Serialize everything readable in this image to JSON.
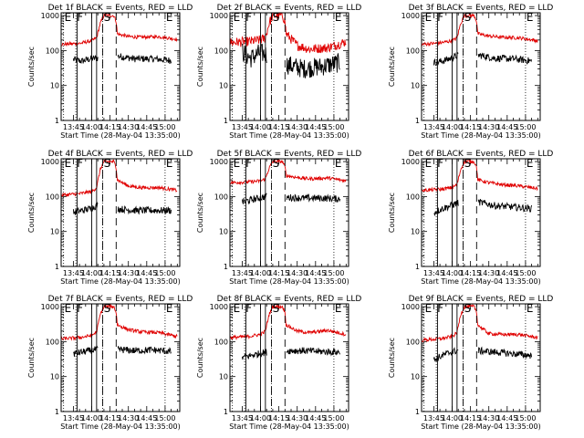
{
  "chart_data": [
    {
      "type": "line",
      "title": "Det 1f BLACK = Events, RED = LLD",
      "xlabel": "Start Time (28-May-04 13:35:00)",
      "ylabel": "Counts/sec",
      "xticks": [
        "13:45",
        "14:00",
        "14:15",
        "14:30",
        "14:45",
        "15:00"
      ],
      "yticks": [
        "1",
        "10",
        "100",
        "1000"
      ],
      "ylim": [
        1,
        1000
      ],
      "yscale": "log",
      "markers": [
        {
          "label": "E",
          "time": "13:37"
        },
        {
          "label": "F",
          "time": "13:47"
        },
        {
          "label": "S",
          "time": "14:09"
        },
        {
          "label": "E",
          "time": "15:00"
        }
      ],
      "solid_lines": [
        "13:48",
        "14:00",
        "14:04"
      ],
      "dashed_lines": [
        "14:09",
        "14:20"
      ],
      "series": [
        {
          "name": "Events",
          "color": "#000000",
          "gaps": [
            [
              "14:05",
              "14:21"
            ]
          ],
          "x": [
            "13:45",
            "13:52",
            "13:59",
            "14:04",
            "14:21",
            "14:35",
            "14:50",
            "15:05"
          ],
          "y": [
            55,
            50,
            58,
            60,
            70,
            58,
            58,
            52
          ]
        },
        {
          "name": "LLD",
          "color": "#e00000",
          "gaps": [],
          "x": [
            "13:35",
            "13:50",
            "14:00",
            "14:04",
            "14:07",
            "14:10",
            "14:18",
            "14:20",
            "14:21",
            "14:30",
            "14:40",
            "14:55",
            "15:10"
          ],
          "y": [
            150,
            160,
            190,
            230,
            600,
            1000,
            1000,
            700,
            300,
            250,
            240,
            250,
            210
          ]
        }
      ]
    },
    {
      "type": "line",
      "title": "Det 2f BLACK = Events, RED = LLD",
      "xlabel": "Start Time (28-May-04 13:35:00)",
      "ylabel": "Counts/sec",
      "xticks": [
        "13:45",
        "14:00",
        "14:15",
        "14:30",
        "14:45",
        "15:00"
      ],
      "yticks": [
        "1",
        "10",
        "100",
        "1000"
      ],
      "ylim": [
        1,
        1000
      ],
      "yscale": "log",
      "markers": [
        {
          "label": "E",
          "time": "13:37"
        },
        {
          "label": "F",
          "time": "13:47"
        },
        {
          "label": "S",
          "time": "14:09"
        },
        {
          "label": "E",
          "time": "15:00"
        }
      ],
      "solid_lines": [
        "13:48",
        "14:00",
        "14:04"
      ],
      "dashed_lines": [
        "14:09",
        "14:20"
      ],
      "series": [
        {
          "name": "Events",
          "color": "#000000",
          "gaps": [
            [
              "14:05",
              "14:21"
            ]
          ],
          "x": [
            "13:45",
            "13:52",
            "13:59",
            "14:04",
            "14:21",
            "14:35",
            "14:50",
            "15:05"
          ],
          "y": [
            90,
            60,
            85,
            80,
            40,
            30,
            35,
            45
          ]
        },
        {
          "name": "LLD",
          "color": "#e00000",
          "gaps": [],
          "x": [
            "13:35",
            "13:50",
            "14:00",
            "14:04",
            "14:07",
            "14:10",
            "14:18",
            "14:20",
            "14:21",
            "14:30",
            "14:40",
            "14:55",
            "15:10"
          ],
          "y": [
            170,
            180,
            200,
            230,
            600,
            1000,
            1000,
            700,
            300,
            140,
            110,
            120,
            180
          ]
        }
      ]
    },
    {
      "type": "line",
      "title": "Det 3f BLACK = Events, RED = LLD",
      "xlabel": "Start Time (28-May-04 13:35:00)",
      "ylabel": "Counts/sec",
      "xticks": [
        "13:45",
        "14:00",
        "14:15",
        "14:30",
        "14:45",
        "15:00"
      ],
      "yticks": [
        "1",
        "10",
        "100",
        "1000"
      ],
      "ylim": [
        1,
        1000
      ],
      "yscale": "log",
      "markers": [
        {
          "label": "E",
          "time": "13:37"
        },
        {
          "label": "F",
          "time": "13:47"
        },
        {
          "label": "S",
          "time": "14:09"
        },
        {
          "label": "E",
          "time": "15:00"
        }
      ],
      "solid_lines": [
        "13:48",
        "14:00",
        "14:04"
      ],
      "dashed_lines": [
        "14:09",
        "14:20"
      ],
      "series": [
        {
          "name": "Events",
          "color": "#000000",
          "gaps": [
            [
              "14:05",
              "14:21"
            ]
          ],
          "x": [
            "13:45",
            "13:52",
            "13:59",
            "14:04",
            "14:21",
            "14:35",
            "14:50",
            "15:05"
          ],
          "y": [
            45,
            50,
            60,
            70,
            75,
            60,
            58,
            50
          ]
        },
        {
          "name": "LLD",
          "color": "#e00000",
          "gaps": [],
          "x": [
            "13:35",
            "13:50",
            "14:00",
            "14:04",
            "14:07",
            "14:10",
            "14:18",
            "14:20",
            "14:21",
            "14:30",
            "14:40",
            "14:55",
            "15:10"
          ],
          "y": [
            150,
            165,
            190,
            230,
            600,
            1000,
            1000,
            700,
            300,
            260,
            240,
            230,
            190
          ]
        }
      ]
    },
    {
      "type": "line",
      "title": "Det 4f BLACK = Events, RED = LLD",
      "xlabel": "Start Time (28-May-04 13:35:00)",
      "ylabel": "Counts/sec",
      "xticks": [
        "13:45",
        "14:00",
        "14:15",
        "14:30",
        "14:45",
        "15:00"
      ],
      "yticks": [
        "1",
        "10",
        "100",
        "1000"
      ],
      "ylim": [
        1,
        1000
      ],
      "yscale": "log",
      "markers": [
        {
          "label": "E",
          "time": "13:37"
        },
        {
          "label": "F",
          "time": "13:47"
        },
        {
          "label": "S",
          "time": "14:09"
        },
        {
          "label": "E",
          "time": "15:00"
        }
      ],
      "solid_lines": [
        "13:48",
        "14:00",
        "14:04"
      ],
      "dashed_lines": [
        "14:09",
        "14:20"
      ],
      "series": [
        {
          "name": "Events",
          "color": "#000000",
          "gaps": [
            [
              "14:05",
              "14:21"
            ]
          ],
          "x": [
            "13:45",
            "13:52",
            "13:59",
            "14:04",
            "14:21",
            "14:35",
            "14:50",
            "15:05"
          ],
          "y": [
            35,
            40,
            45,
            55,
            45,
            40,
            40,
            40
          ]
        },
        {
          "name": "LLD",
          "color": "#e00000",
          "gaps": [],
          "x": [
            "13:35",
            "13:50",
            "14:00",
            "14:04",
            "14:07",
            "14:10",
            "14:18",
            "14:20",
            "14:21",
            "14:30",
            "14:40",
            "14:55",
            "15:10"
          ],
          "y": [
            110,
            120,
            140,
            180,
            600,
            1000,
            1000,
            700,
            300,
            200,
            180,
            180,
            150
          ]
        }
      ]
    },
    {
      "type": "line",
      "title": "Det 5f BLACK = Events, RED = LLD",
      "xlabel": "Start Time (28-May-04 13:35:00)",
      "ylabel": "Counts/sec",
      "xticks": [
        "13:45",
        "14:00",
        "14:15",
        "14:30",
        "14:45",
        "15:00"
      ],
      "yticks": [
        "1",
        "10",
        "100",
        "1000"
      ],
      "ylim": [
        1,
        1000
      ],
      "yscale": "log",
      "markers": [
        {
          "label": "E",
          "time": "13:37"
        },
        {
          "label": "F",
          "time": "13:47"
        },
        {
          "label": "S",
          "time": "14:09"
        },
        {
          "label": "E",
          "time": "15:00"
        }
      ],
      "solid_lines": [
        "13:48",
        "14:00",
        "14:04"
      ],
      "dashed_lines": [
        "14:09",
        "14:20"
      ],
      "series": [
        {
          "name": "Events",
          "color": "#000000",
          "gaps": [
            [
              "14:05",
              "14:21"
            ]
          ],
          "x": [
            "13:45",
            "13:52",
            "13:59",
            "14:04",
            "14:21",
            "14:35",
            "14:50",
            "15:05"
          ],
          "y": [
            70,
            80,
            90,
            100,
            95,
            90,
            90,
            85
          ]
        },
        {
          "name": "LLD",
          "color": "#e00000",
          "gaps": [],
          "x": [
            "13:35",
            "13:50",
            "14:00",
            "14:04",
            "14:07",
            "14:10",
            "14:18",
            "14:20",
            "14:21",
            "14:30",
            "14:40",
            "14:55",
            "15:10"
          ],
          "y": [
            250,
            260,
            280,
            320,
            650,
            1000,
            1000,
            700,
            400,
            350,
            320,
            340,
            280
          ]
        }
      ]
    },
    {
      "type": "line",
      "title": "Det 6f BLACK = Events, RED = LLD",
      "xlabel": "Start Time (28-May-04 13:35:00)",
      "ylabel": "Counts/sec",
      "xticks": [
        "13:45",
        "14:00",
        "14:15",
        "14:30",
        "14:45",
        "15:00"
      ],
      "yticks": [
        "1",
        "10",
        "100",
        "1000"
      ],
      "ylim": [
        1,
        1000
      ],
      "yscale": "log",
      "markers": [
        {
          "label": "E",
          "time": "13:37"
        },
        {
          "label": "F",
          "time": "13:47"
        },
        {
          "label": "S",
          "time": "14:09"
        },
        {
          "label": "E",
          "time": "15:00"
        }
      ],
      "solid_lines": [
        "13:48",
        "14:00",
        "14:04"
      ],
      "dashed_lines": [
        "14:09",
        "14:20"
      ],
      "series": [
        {
          "name": "Events",
          "color": "#000000",
          "gaps": [
            [
              "14:05",
              "14:21"
            ]
          ],
          "x": [
            "13:45",
            "13:52",
            "13:59",
            "14:04",
            "14:21",
            "14:35",
            "14:50",
            "15:05"
          ],
          "y": [
            35,
            45,
            55,
            65,
            70,
            55,
            50,
            45
          ]
        },
        {
          "name": "LLD",
          "color": "#e00000",
          "gaps": [],
          "x": [
            "13:35",
            "13:50",
            "14:00",
            "14:04",
            "14:07",
            "14:10",
            "14:18",
            "14:20",
            "14:21",
            "14:30",
            "14:40",
            "14:55",
            "15:10"
          ],
          "y": [
            150,
            160,
            180,
            220,
            600,
            1000,
            1000,
            700,
            300,
            250,
            220,
            200,
            170
          ]
        }
      ]
    },
    {
      "type": "line",
      "title": "Det 7f BLACK = Events, RED = LLD",
      "xlabel": "Start Time (28-May-04 13:35:00)",
      "ylabel": "Counts/sec",
      "xticks": [
        "13:45",
        "14:00",
        "14:15",
        "14:30",
        "14:45",
        "15:00"
      ],
      "yticks": [
        "1",
        "10",
        "100",
        "1000"
      ],
      "ylim": [
        1,
        1000
      ],
      "yscale": "log",
      "markers": [
        {
          "label": "E",
          "time": "13:37"
        },
        {
          "label": "F",
          "time": "13:47"
        },
        {
          "label": "S",
          "time": "14:09"
        },
        {
          "label": "E",
          "time": "15:00"
        }
      ],
      "solid_lines": [
        "13:48",
        "14:00",
        "14:04"
      ],
      "dashed_lines": [
        "14:09",
        "14:20"
      ],
      "series": [
        {
          "name": "Events",
          "color": "#000000",
          "gaps": [
            [
              "14:05",
              "14:21"
            ]
          ],
          "x": [
            "13:45",
            "13:52",
            "13:59",
            "14:04",
            "14:21",
            "14:35",
            "14:50",
            "15:05"
          ],
          "y": [
            45,
            50,
            55,
            60,
            60,
            55,
            58,
            52
          ]
        },
        {
          "name": "LLD",
          "color": "#e00000",
          "gaps": [],
          "x": [
            "13:35",
            "13:50",
            "14:00",
            "14:04",
            "14:07",
            "14:10",
            "14:18",
            "14:20",
            "14:21",
            "14:30",
            "14:40",
            "14:55",
            "15:10"
          ],
          "y": [
            120,
            130,
            150,
            190,
            600,
            1000,
            1000,
            700,
            300,
            220,
            190,
            180,
            140
          ]
        }
      ]
    },
    {
      "type": "line",
      "title": "Det 8f BLACK = Events, RED = LLD",
      "xlabel": "Start Time (28-May-04 13:35:00)",
      "ylabel": "Counts/sec",
      "xticks": [
        "13:45",
        "14:00",
        "14:15",
        "14:30",
        "14:45",
        "15:00"
      ],
      "yticks": [
        "1",
        "10",
        "100",
        "1000"
      ],
      "ylim": [
        1,
        1000
      ],
      "yscale": "log",
      "markers": [
        {
          "label": "E",
          "time": "13:37"
        },
        {
          "label": "F",
          "time": "13:47"
        },
        {
          "label": "S",
          "time": "14:09"
        },
        {
          "label": "E",
          "time": "15:00"
        }
      ],
      "solid_lines": [
        "13:48",
        "14:00",
        "14:04"
      ],
      "dashed_lines": [
        "14:09",
        "14:20"
      ],
      "series": [
        {
          "name": "Events",
          "color": "#000000",
          "gaps": [
            [
              "14:05",
              "14:21"
            ]
          ],
          "x": [
            "13:45",
            "13:52",
            "13:59",
            "14:04",
            "14:21",
            "14:35",
            "14:50",
            "15:05"
          ],
          "y": [
            35,
            40,
            45,
            50,
            55,
            55,
            52,
            50
          ]
        },
        {
          "name": "LLD",
          "color": "#e00000",
          "gaps": [],
          "x": [
            "13:35",
            "13:50",
            "14:00",
            "14:04",
            "14:07",
            "14:10",
            "14:18",
            "14:20",
            "14:21",
            "14:30",
            "14:40",
            "14:55",
            "15:10"
          ],
          "y": [
            130,
            140,
            160,
            200,
            600,
            1000,
            1000,
            700,
            300,
            200,
            180,
            210,
            160
          ]
        }
      ]
    },
    {
      "type": "line",
      "title": "Det 9f BLACK = Events, RED = LLD",
      "xlabel": "Start Time (28-May-04 13:35:00)",
      "ylabel": "Counts/sec",
      "xticks": [
        "13:45",
        "14:00",
        "14:15",
        "14:30",
        "14:45",
        "15:00"
      ],
      "yticks": [
        "1",
        "10",
        "100",
        "1000"
      ],
      "ylim": [
        1,
        1000
      ],
      "yscale": "log",
      "markers": [
        {
          "label": "E",
          "time": "13:37"
        },
        {
          "label": "F",
          "time": "13:47"
        },
        {
          "label": "S",
          "time": "14:09"
        },
        {
          "label": "E",
          "time": "15:00"
        }
      ],
      "solid_lines": [
        "13:48",
        "14:00",
        "14:04"
      ],
      "dashed_lines": [
        "14:09",
        "14:20"
      ],
      "series": [
        {
          "name": "Events",
          "color": "#000000",
          "gaps": [
            [
              "14:05",
              "14:21"
            ]
          ],
          "x": [
            "13:45",
            "13:52",
            "13:59",
            "14:04",
            "14:21",
            "14:35",
            "14:50",
            "15:05"
          ],
          "y": [
            30,
            40,
            50,
            55,
            55,
            50,
            45,
            40
          ]
        },
        {
          "name": "LLD",
          "color": "#e00000",
          "gaps": [],
          "x": [
            "13:35",
            "13:50",
            "14:00",
            "14:04",
            "14:07",
            "14:10",
            "14:18",
            "14:20",
            "14:21",
            "14:30",
            "14:40",
            "14:55",
            "15:10"
          ],
          "y": [
            110,
            120,
            140,
            180,
            600,
            1000,
            1000,
            700,
            300,
            170,
            160,
            160,
            130
          ]
        }
      ]
    }
  ]
}
